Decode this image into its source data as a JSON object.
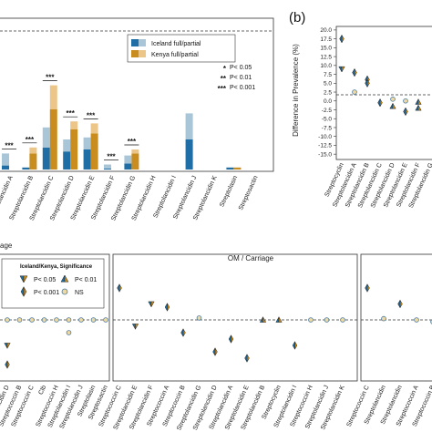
{
  "colors": {
    "iceland_full": "#1f6fa6",
    "iceland_partial": "#a9c6d8",
    "kenya_full": "#c98c1e",
    "kenya_partial": "#ecc588",
    "ns": "#eed9a2",
    "frame": "#333333"
  },
  "panel_b_label": "(b)",
  "chart_data": [
    {
      "id": "a",
      "type": "bar",
      "stacked": true,
      "categories": [
        "Streptolancidin A",
        "Streptolancidin B",
        "Streptolancidin C",
        "Streptolancidin D",
        "Streptolancidin E",
        "Streptolancidin F",
        "Streptolancidin G",
        "Streptolancidin H",
        "Streptolancidin I",
        "Streptolancidin J",
        "Streptolancidin K",
        "Streptolasin",
        "Streptosactin"
      ],
      "series": [
        {
          "name": "Iceland full/partial",
          "full": [
            2,
            1,
            11,
            9,
            10,
            0.5,
            3,
            0,
            0,
            15,
            0,
            1,
            0
          ],
          "partial": [
            6,
            0,
            10,
            6,
            6,
            2,
            4,
            0,
            0,
            13,
            0,
            0,
            0
          ]
        },
        {
          "name": "Kenya full/partial",
          "full": [
            0,
            8,
            30,
            20,
            18,
            0,
            8,
            0,
            0,
            0,
            0,
            1,
            0
          ],
          "partial": [
            0,
            3,
            12,
            4,
            5,
            0,
            2,
            0,
            0,
            0,
            0,
            0,
            0
          ]
        }
      ],
      "significance": [
        {
          "category": "Streptolancidin A",
          "label": "***"
        },
        {
          "category": "Streptolancidin B",
          "label": "***"
        },
        {
          "category": "Streptolancidin C",
          "label": "***"
        },
        {
          "category": "Streptolancidin D",
          "label": "***"
        },
        {
          "category": "Streptolancidin E",
          "label": "***"
        },
        {
          "category": "Streptolancidin F",
          "label": "***"
        },
        {
          "category": "Streptolancidin G",
          "label": "***"
        }
      ],
      "legend": {
        "entries": [
          "Iceland full/partial",
          "Kenya full/partial"
        ],
        "sig": [
          {
            "mark": "*",
            "text": "P< 0.05"
          },
          {
            "mark": "**",
            "text": "P< 0.01"
          },
          {
            "mark": "***",
            "text": "P< 0.001"
          }
        ]
      },
      "ylim": [
        0,
        45
      ]
    },
    {
      "id": "b",
      "type": "scatter",
      "ylabel": "Difference in Prevalence (%)",
      "yticks": [
        "20.0",
        "17.5",
        "15.0",
        "12.5",
        "10.0",
        "7.5",
        "5.0",
        "2.5",
        "0.0",
        "-2.5",
        "-5.0",
        "-7.5",
        "-10.0",
        "-12.5",
        "-15.0"
      ],
      "ylim": [
        -16.5,
        21
      ],
      "categories": [
        "Streptocyclin",
        "Streptolancidin A",
        "Streptolancidin B",
        "Streptolancidin C",
        "Streptolancidin D",
        "Streptolancidin E",
        "Streptolancidin F",
        "Streptolancidin G"
      ],
      "points": [
        {
          "x": 0,
          "y": 17.5,
          "type": "diamond"
        },
        {
          "x": 0,
          "y": 9.0,
          "type": "down"
        },
        {
          "x": 1,
          "y": 8.0,
          "type": "diamond"
        },
        {
          "x": 1,
          "y": 2.5,
          "type": "circle"
        },
        {
          "x": 2,
          "y": 6.0,
          "type": "diamond"
        },
        {
          "x": 2,
          "y": 5.0,
          "type": "diamond"
        },
        {
          "x": 3,
          "y": -0.5,
          "type": "diamond"
        },
        {
          "x": 4,
          "y": 0.5,
          "type": "circle"
        },
        {
          "x": 4,
          "y": -1.5,
          "type": "up"
        },
        {
          "x": 5,
          "y": 0.0,
          "type": "circle"
        },
        {
          "x": 5,
          "y": -3.0,
          "type": "diamond"
        },
        {
          "x": 6,
          "y": -0.3,
          "type": "up"
        },
        {
          "x": 6,
          "y": -2.0,
          "type": "up"
        }
      ]
    },
    {
      "id": "c1",
      "type": "scatter",
      "title": "age",
      "categories": [
        "Streptolancidin D",
        "Streptococcin B",
        "Streptococcin C",
        "Clb",
        "Streptococcin H",
        "Streptolancidin I",
        "Streptolancidin J",
        "Streptolasin",
        "Streptosactin"
      ],
      "points": [
        {
          "x": 0,
          "y": 0,
          "type": "circle"
        },
        {
          "x": 0,
          "y": -4,
          "type": "down"
        },
        {
          "x": 0,
          "y": -7,
          "type": "diamond"
        },
        {
          "x": 1,
          "y": 0,
          "type": "circle"
        },
        {
          "x": 2,
          "y": 0,
          "type": "circle"
        },
        {
          "x": 3,
          "y": 0,
          "type": "circle"
        },
        {
          "x": 4,
          "y": 0,
          "type": "circle"
        },
        {
          "x": 5,
          "y": 0,
          "type": "circle"
        },
        {
          "x": 5,
          "y": -2,
          "type": "circle"
        },
        {
          "x": 6,
          "y": 0,
          "type": "circle"
        },
        {
          "x": 7,
          "y": 0,
          "type": "circle"
        },
        {
          "x": 8,
          "y": 0,
          "type": "circle"
        }
      ],
      "legend": {
        "title": "Iceland/Kenya, Significance",
        "entries": [
          {
            "type": "down",
            "text": "P< 0.05"
          },
          {
            "type": "up",
            "text": "P< 0.01"
          },
          {
            "type": "diamond",
            "text": "P< 0.001"
          },
          {
            "type": "circle",
            "text": "NS"
          }
        ]
      }
    },
    {
      "id": "c2",
      "type": "scatter",
      "title": "OM / Carriage",
      "categories": [
        "Streptococcin C",
        "Streptolancidin E",
        "Streptolancidin F",
        "Streptococcin A",
        "Streptococcin B",
        "Streptolancidin G",
        "Streptolancidin D",
        "Streptolancidin A",
        "Streptolancidin E",
        "Streptolancidin B",
        "Streptocyclin",
        "Streptolancidin I",
        "Streptococcin H",
        "Streptolancidin J",
        "Streptolancidin K"
      ],
      "points": [
        {
          "x": 0,
          "y": 5,
          "type": "diamond"
        },
        {
          "x": 1,
          "y": -1,
          "type": "down"
        },
        {
          "x": 2,
          "y": 2.5,
          "type": "down"
        },
        {
          "x": 3,
          "y": 2,
          "type": "diamond"
        },
        {
          "x": 4,
          "y": -2,
          "type": "diamond"
        },
        {
          "x": 5,
          "y": 0.3,
          "type": "circle"
        },
        {
          "x": 6,
          "y": -5,
          "type": "diamond"
        },
        {
          "x": 7,
          "y": -3,
          "type": "diamond"
        },
        {
          "x": 8,
          "y": -6,
          "type": "diamond"
        },
        {
          "x": 9,
          "y": 0,
          "type": "up"
        },
        {
          "x": 10,
          "y": 0,
          "type": "up"
        },
        {
          "x": 11,
          "y": -4,
          "type": "diamond"
        },
        {
          "x": 12,
          "y": 0,
          "type": "circle"
        },
        {
          "x": 13,
          "y": 0,
          "type": "circle"
        },
        {
          "x": 14,
          "y": 0,
          "type": "circle"
        }
      ]
    },
    {
      "id": "c3",
      "type": "scatter",
      "categories": [
        "Streptococcin C",
        "Streptolancidin",
        "Streptolancidin",
        "Streptococcin A",
        "Streptococcin B"
      ],
      "points": [
        {
          "x": 0,
          "y": 5,
          "type": "diamond"
        },
        {
          "x": 1,
          "y": 0.2,
          "type": "circle"
        },
        {
          "x": 2,
          "y": 2.5,
          "type": "diamond"
        },
        {
          "x": 3,
          "y": 0,
          "type": "circle"
        },
        {
          "x": 4,
          "y": -0.3,
          "type": "circle"
        }
      ]
    }
  ]
}
